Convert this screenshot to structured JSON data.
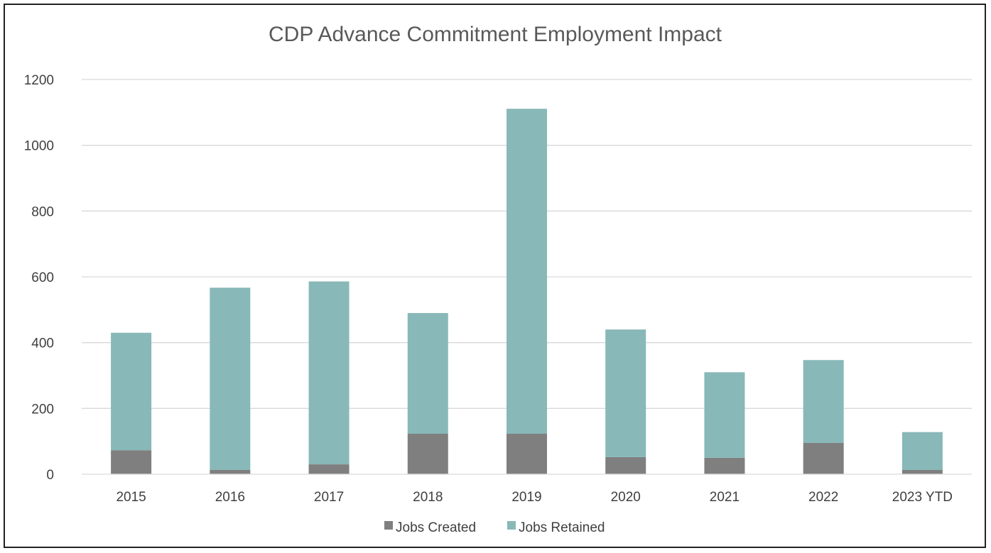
{
  "chart_data": {
    "type": "bar",
    "stacked": true,
    "title": "CDP Advance Commitment Employment Impact",
    "xlabel": "",
    "ylabel": "",
    "categories": [
      "2015",
      "2016",
      "2017",
      "2018",
      "2019",
      "2020",
      "2021",
      "2022",
      "2023 YTD"
    ],
    "series": [
      {
        "name": "Jobs Created",
        "color": "#7f7f7f",
        "values": [
          73,
          13,
          30,
          123,
          123,
          52,
          50,
          95,
          13
        ]
      },
      {
        "name": "Jobs Retained",
        "color": "#88b8b8",
        "values": [
          357,
          554,
          556,
          367,
          988,
          388,
          260,
          252,
          115
        ]
      }
    ],
    "ylim": [
      0,
      1200
    ],
    "yticks": [
      0,
      200,
      400,
      600,
      800,
      1000,
      1200
    ],
    "grid": true,
    "legend_position": "bottom"
  }
}
